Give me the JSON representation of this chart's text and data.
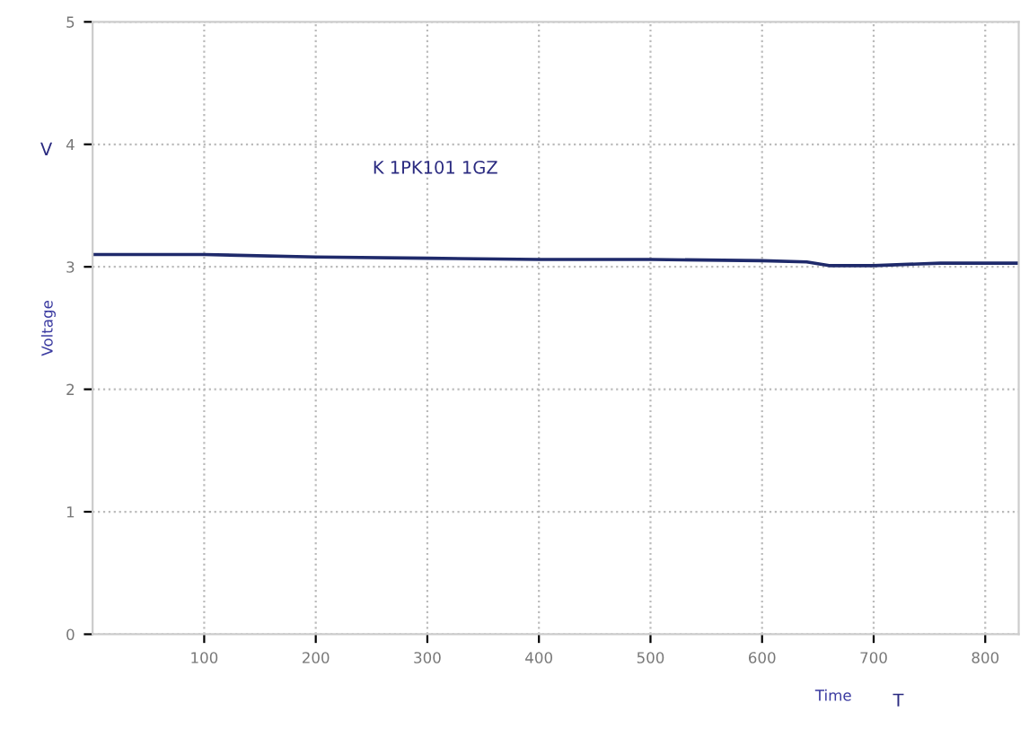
{
  "chart_data": {
    "type": "line",
    "xlabel": "Time",
    "ylabel": "Voltage",
    "annotations": [
      "K 1PK101 1GZ",
      "V",
      "T"
    ],
    "x": [
      0,
      100,
      200,
      300,
      400,
      500,
      600,
      640,
      660,
      700,
      760,
      830
    ],
    "series": [
      {
        "color": "#1f2a6b",
        "values": [
          3.1,
          3.1,
          3.08,
          3.07,
          3.06,
          3.06,
          3.05,
          3.04,
          3.01,
          3.01,
          3.03,
          3.03
        ]
      }
    ],
    "xlim": [
      0,
      830
    ],
    "xticks": [
      100,
      200,
      300,
      400,
      500,
      600,
      700,
      800
    ],
    "ylim": [
      0,
      5
    ],
    "yticks": [
      0,
      1,
      2,
      3,
      4,
      5
    ],
    "grid": true,
    "line_style": "solid"
  }
}
